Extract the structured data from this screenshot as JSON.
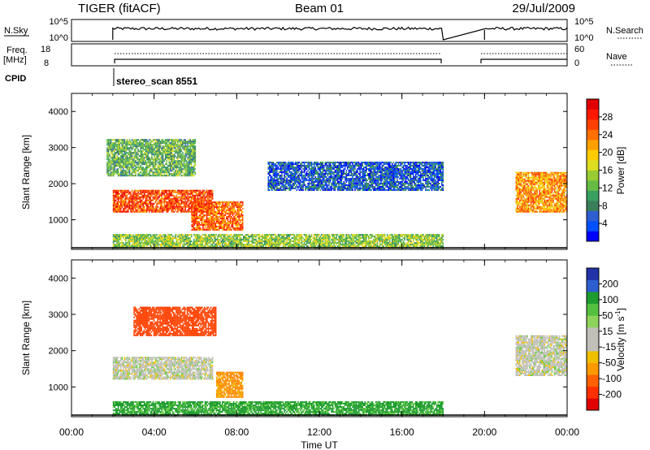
{
  "header": {
    "title_left": "TIGER (fitACF)",
    "title_center": "Beam 01",
    "title_right": "29/Jul/2009"
  },
  "panels": {
    "nsky": {
      "label": "N.Sky",
      "ticks_left": [
        "10^5",
        "10^0"
      ],
      "ticks_right": [
        "10^5",
        "10^0"
      ],
      "right_label": "N.Search"
    },
    "freq": {
      "label_line1": "Freq.",
      "label_line2": "[MHz]",
      "ticks_left": [
        "18",
        "8"
      ],
      "ticks_right": [
        "60",
        "0"
      ],
      "right_label": "Nave"
    },
    "cpid": {
      "label": "CPID",
      "program": "stereo_scan 8551"
    }
  },
  "axes": {
    "ylabel": "Slant Range [km]",
    "xlabel": "Time UT",
    "y_ticks": [
      "1000",
      "2000",
      "3000",
      "4000"
    ],
    "x_ticks": [
      "00:00",
      "04:00",
      "08:00",
      "12:00",
      "16:00",
      "20:00",
      "00:00"
    ],
    "ylim": [
      180,
      4500
    ]
  },
  "colorbars": {
    "power": {
      "label": "Power [dB]",
      "ticks": [
        "4",
        "8",
        "12",
        "16",
        "20",
        "24",
        "28"
      ],
      "colors": [
        "#0000ff",
        "#0050ff",
        "#2e5ed0",
        "#3a7f5a",
        "#38a060",
        "#66bb44",
        "#99cc33",
        "#dddd22",
        "#ffcc00",
        "#ffa000",
        "#ff7000",
        "#ff4000",
        "#ff1800",
        "#e00000"
      ]
    },
    "velocity": {
      "label": "Velocity [m s",
      "label_sup": "-1",
      "label_end": "]",
      "ticks": [
        "200",
        "100",
        "50",
        "15",
        "-15",
        "-50",
        "-100",
        "-200"
      ],
      "colors": [
        "#2233aa",
        "#2d5ed0",
        "#1f9c30",
        "#55c040",
        "#8fd45a",
        "#c0c0b8",
        "#c0c0b8",
        "#f0c000",
        "#ff9900",
        "#ff6000",
        "#ff3000",
        "#e00000"
      ]
    }
  },
  "chart_data": {
    "type": "heatmap",
    "time_range_hours": [
      0,
      24
    ],
    "data_gap_hours": [
      18,
      20
    ],
    "operation_start_hour": 2,
    "power_regions_db": [
      {
        "t_start": 2.0,
        "t_end": 6.8,
        "range_km": [
          1200,
          1800
        ],
        "power_db": 26
      },
      {
        "t_start": 5.8,
        "t_end": 8.3,
        "range_km": [
          700,
          1500
        ],
        "power_db": 24
      },
      {
        "t_start": 1.7,
        "t_end": 6.0,
        "range_km": [
          2200,
          3200
        ],
        "power_db": 12
      },
      {
        "t_start": 2.0,
        "t_end": 18.0,
        "range_km": [
          200,
          600
        ],
        "power_db": 14
      },
      {
        "t_start": 9.5,
        "t_end": 18.0,
        "range_km": [
          1800,
          2600
        ],
        "power_db": 6
      },
      {
        "t_start": 21.5,
        "t_end": 24.0,
        "range_km": [
          1200,
          2300
        ],
        "power_db": 22
      }
    ],
    "velocity_regions_ms": [
      {
        "t_start": 2.0,
        "t_end": 6.8,
        "range_km": [
          1200,
          1800
        ],
        "velocity_ms": 0
      },
      {
        "t_start": 7.0,
        "t_end": 8.3,
        "range_km": [
          700,
          1400
        ],
        "velocity_ms": -60
      },
      {
        "t_start": 3.0,
        "t_end": 7.0,
        "range_km": [
          2400,
          3200
        ],
        "velocity_ms": -120
      },
      {
        "t_start": 2.0,
        "t_end": 18.0,
        "range_km": [
          200,
          600
        ],
        "velocity_ms": 40
      },
      {
        "t_start": 21.5,
        "t_end": 24.0,
        "range_km": [
          1300,
          2400
        ],
        "velocity_ms": 0
      }
    ]
  }
}
